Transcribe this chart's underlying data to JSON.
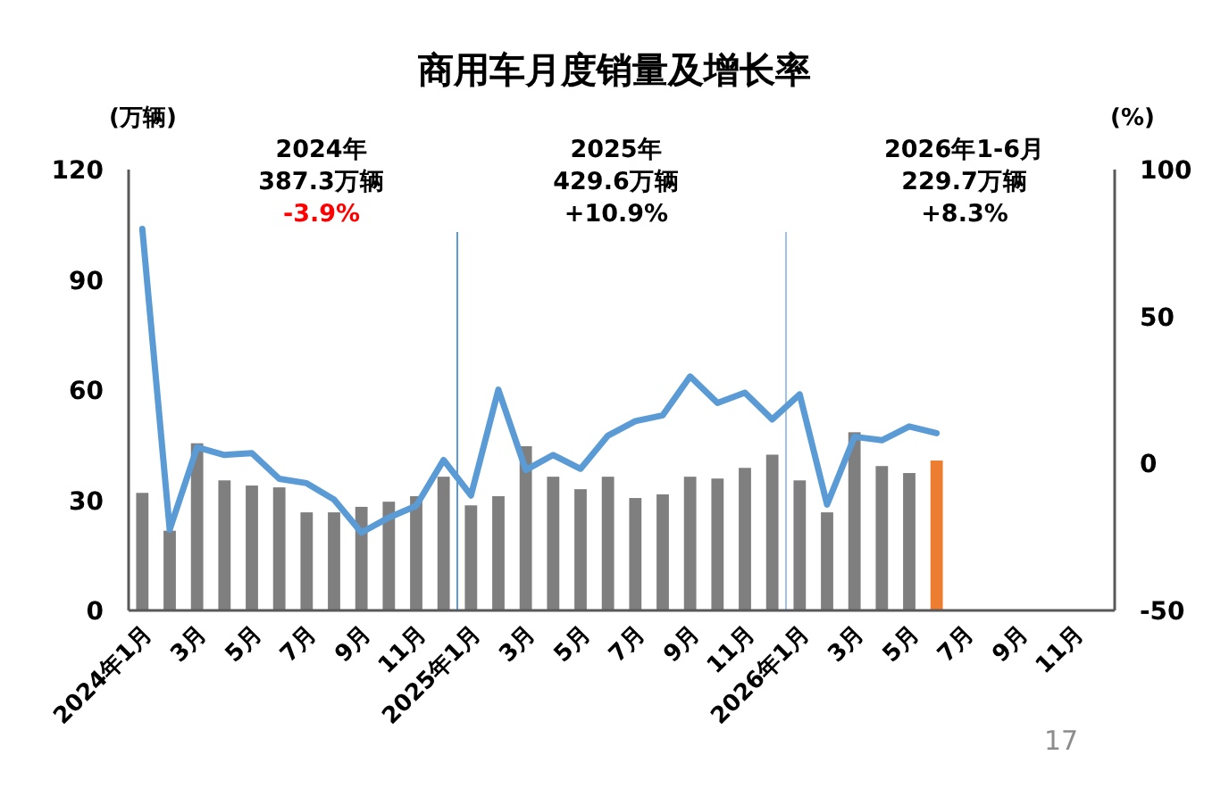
{
  "chart_data": {
    "type": "bar",
    "title": "商用车月度销量及增长率",
    "ylabel": "(万辆)",
    "y2label": "(%)",
    "categories": [
      "2024年1月",
      null,
      "3月",
      null,
      "5月",
      null,
      "7月",
      null,
      "9月",
      null,
      "11月",
      null,
      "2025年1月",
      null,
      "3月",
      null,
      "5月",
      null,
      "7月",
      null,
      "9月",
      null,
      "11月",
      null,
      "2026年1月",
      null,
      "3月",
      null,
      "5月",
      null,
      "7月",
      null,
      "9月",
      null,
      "11月",
      null
    ],
    "series": [
      {
        "colors": [
          "#7f7f7f",
          "#7f7f7f",
          "#7f7f7f",
          "#7f7f7f",
          "#7f7f7f",
          "#7f7f7f",
          "#7f7f7f",
          "#7f7f7f",
          "#7f7f7f",
          "#7f7f7f",
          "#7f7f7f",
          "#7f7f7f",
          "#7f7f7f",
          "#7f7f7f",
          "#7f7f7f",
          "#7f7f7f",
          "#7f7f7f",
          "#7f7f7f",
          "#7f7f7f",
          "#7f7f7f",
          "#7f7f7f",
          "#7f7f7f",
          "#7f7f7f",
          "#7f7f7f",
          "#7f7f7f",
          "#7f7f7f",
          "#7f7f7f",
          "#7f7f7f",
          "#7f7f7f",
          "#ed7d31",
          null,
          null,
          null,
          null,
          null,
          null
        ],
        "values": [
          32.0,
          21.7,
          45.5,
          35.4,
          34.0,
          33.5,
          26.7,
          26.7,
          28.2,
          29.6,
          31.1,
          36.4,
          28.6,
          31.1,
          44.7,
          36.4,
          33.0,
          36.4,
          30.6,
          31.6,
          36.4,
          35.9,
          38.8,
          42.4,
          35.4,
          26.7,
          48.5,
          39.3,
          37.4,
          40.8,
          null,
          null,
          null,
          null,
          null,
          null
        ]
      },
      {
        "type": "line",
        "axis": "y2",
        "color": "#5b9bd5",
        "values": [
          79.8,
          -22.5,
          5.5,
          2.9,
          3.5,
          -5.2,
          -6.7,
          -12.3,
          -23.5,
          -18.4,
          -14.4,
          1.2,
          -10.9,
          25.1,
          -2.2,
          2.9,
          -1.8,
          9.5,
          14.4,
          16.4,
          29.6,
          20.6,
          24.1,
          15.0,
          23.5,
          -14.0,
          9.1,
          7.9,
          12.6,
          10.3,
          null,
          null,
          null,
          null,
          null,
          null
        ]
      }
    ],
    "ylim": [
      0,
      120
    ],
    "yticks": [
      0,
      30,
      60,
      90,
      120
    ],
    "y2lim": [
      -50,
      100
    ],
    "y2ticks": [
      -50,
      0,
      50,
      100
    ],
    "annotations": [
      "2024年",
      "387.3万辆",
      "-3.9%",
      "2025年",
      "429.6万辆",
      "+10.9%",
      "2026年1-6月",
      "229.7万辆",
      "+8.3%",
      "17"
    ],
    "grid": false,
    "marker": "none"
  }
}
